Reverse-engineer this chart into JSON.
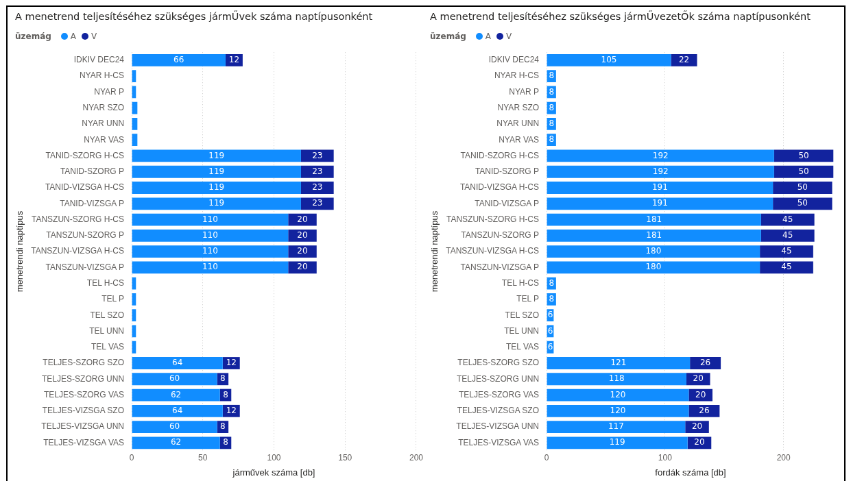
{
  "chart_data": [
    {
      "type": "bar",
      "orientation": "horizontal",
      "stacked": true,
      "title": "A menetrend teljesítéséhez szükséges jármŰvek száma naptípusonként",
      "legend_title": "üzemág",
      "legend": "top left",
      "xlabel": "járművek száma [db]",
      "ylabel": "menetrendi naptípus",
      "grid": "x",
      "xlim": [
        0,
        200
      ],
      "xticks": [
        0,
        50,
        100,
        150,
        200
      ],
      "categories": [
        "IDKIV DEC24",
        "NYAR H-CS",
        "NYAR P",
        "NYAR SZO",
        "NYAR UNN",
        "NYAR VAS",
        "TANID-SZORG H-CS",
        "TANID-SZORG P",
        "TANID-VIZSGA H-CS",
        "TANID-VIZSGA P",
        "TANSZUN-SZORG H-CS",
        "TANSZUN-SZORG P",
        "TANSZUN-VIZSGA H-CS",
        "TANSZUN-VIZSGA P",
        "TEL H-CS",
        "TEL P",
        "TEL SZO",
        "TEL UNN",
        "TEL VAS",
        "TELJES-SZORG SZO",
        "TELJES-SZORG UNN",
        "TELJES-SZORG VAS",
        "TELJES-VIZSGA SZO",
        "TELJES-VIZSGA UNN",
        "TELJES-VIZSGA VAS"
      ],
      "series": [
        {
          "name": "A",
          "color": "#118dff",
          "values": [
            66,
            3,
            3,
            4,
            4,
            4,
            119,
            119,
            119,
            119,
            110,
            110,
            110,
            110,
            3,
            3,
            3,
            3,
            3,
            64,
            60,
            62,
            64,
            60,
            62
          ],
          "value_labels": [
            "66",
            null,
            null,
            null,
            null,
            null,
            "119",
            "119",
            "119",
            "119",
            "110",
            "110",
            "110",
            "110",
            null,
            null,
            null,
            null,
            null,
            "64",
            "60",
            "62",
            "64",
            "60",
            "62"
          ]
        },
        {
          "name": "V",
          "color": "#12239e",
          "values": [
            12,
            null,
            null,
            null,
            null,
            null,
            23,
            23,
            23,
            23,
            20,
            20,
            20,
            20,
            null,
            null,
            null,
            null,
            null,
            12,
            8,
            8,
            12,
            8,
            8
          ],
          "value_labels": [
            "12",
            null,
            null,
            null,
            null,
            null,
            "23",
            "23",
            "23",
            "23",
            "20",
            "20",
            "20",
            "20",
            null,
            null,
            null,
            null,
            null,
            "12",
            "8",
            "8",
            "12",
            "8",
            "8"
          ]
        }
      ]
    },
    {
      "type": "bar",
      "orientation": "horizontal",
      "stacked": true,
      "title": "A menetrend teljesítéséhez szükséges jármŰvezetŐk száma naptípusonként",
      "legend_title": "üzemág",
      "legend": "top left",
      "xlabel": "fordák száma [db]",
      "ylabel": "menetrendi naptípus",
      "grid": "x",
      "xlim": [
        0,
        243
      ],
      "xticks": [
        0,
        100,
        200
      ],
      "data_labels": true,
      "categories": [
        "IDKIV DEC24",
        "NYAR H-CS",
        "NYAR P",
        "NYAR SZO",
        "NYAR UNN",
        "NYAR VAS",
        "TANID-SZORG H-CS",
        "TANID-SZORG P",
        "TANID-VIZSGA H-CS",
        "TANID-VIZSGA P",
        "TANSZUN-SZORG H-CS",
        "TANSZUN-SZORG P",
        "TANSZUN-VIZSGA H-CS",
        "TANSZUN-VIZSGA P",
        "TEL H-CS",
        "TEL P",
        "TEL SZO",
        "TEL UNN",
        "TEL VAS",
        "TELJES-SZORG SZO",
        "TELJES-SZORG UNN",
        "TELJES-SZORG VAS",
        "TELJES-VIZSGA SZO",
        "TELJES-VIZSGA UNN",
        "TELJES-VIZSGA VAS"
      ],
      "series": [
        {
          "name": "A",
          "color": "#118dff",
          "values": [
            105,
            8,
            8,
            8,
            8,
            8,
            192,
            192,
            191,
            191,
            181,
            181,
            180,
            180,
            8,
            8,
            6,
            6,
            6,
            121,
            118,
            120,
            120,
            117,
            119
          ]
        },
        {
          "name": "V",
          "color": "#12239e",
          "values": [
            22,
            null,
            null,
            null,
            null,
            null,
            50,
            50,
            50,
            50,
            45,
            45,
            45,
            45,
            null,
            null,
            null,
            null,
            null,
            26,
            20,
            20,
            26,
            20,
            20
          ]
        }
      ]
    }
  ]
}
